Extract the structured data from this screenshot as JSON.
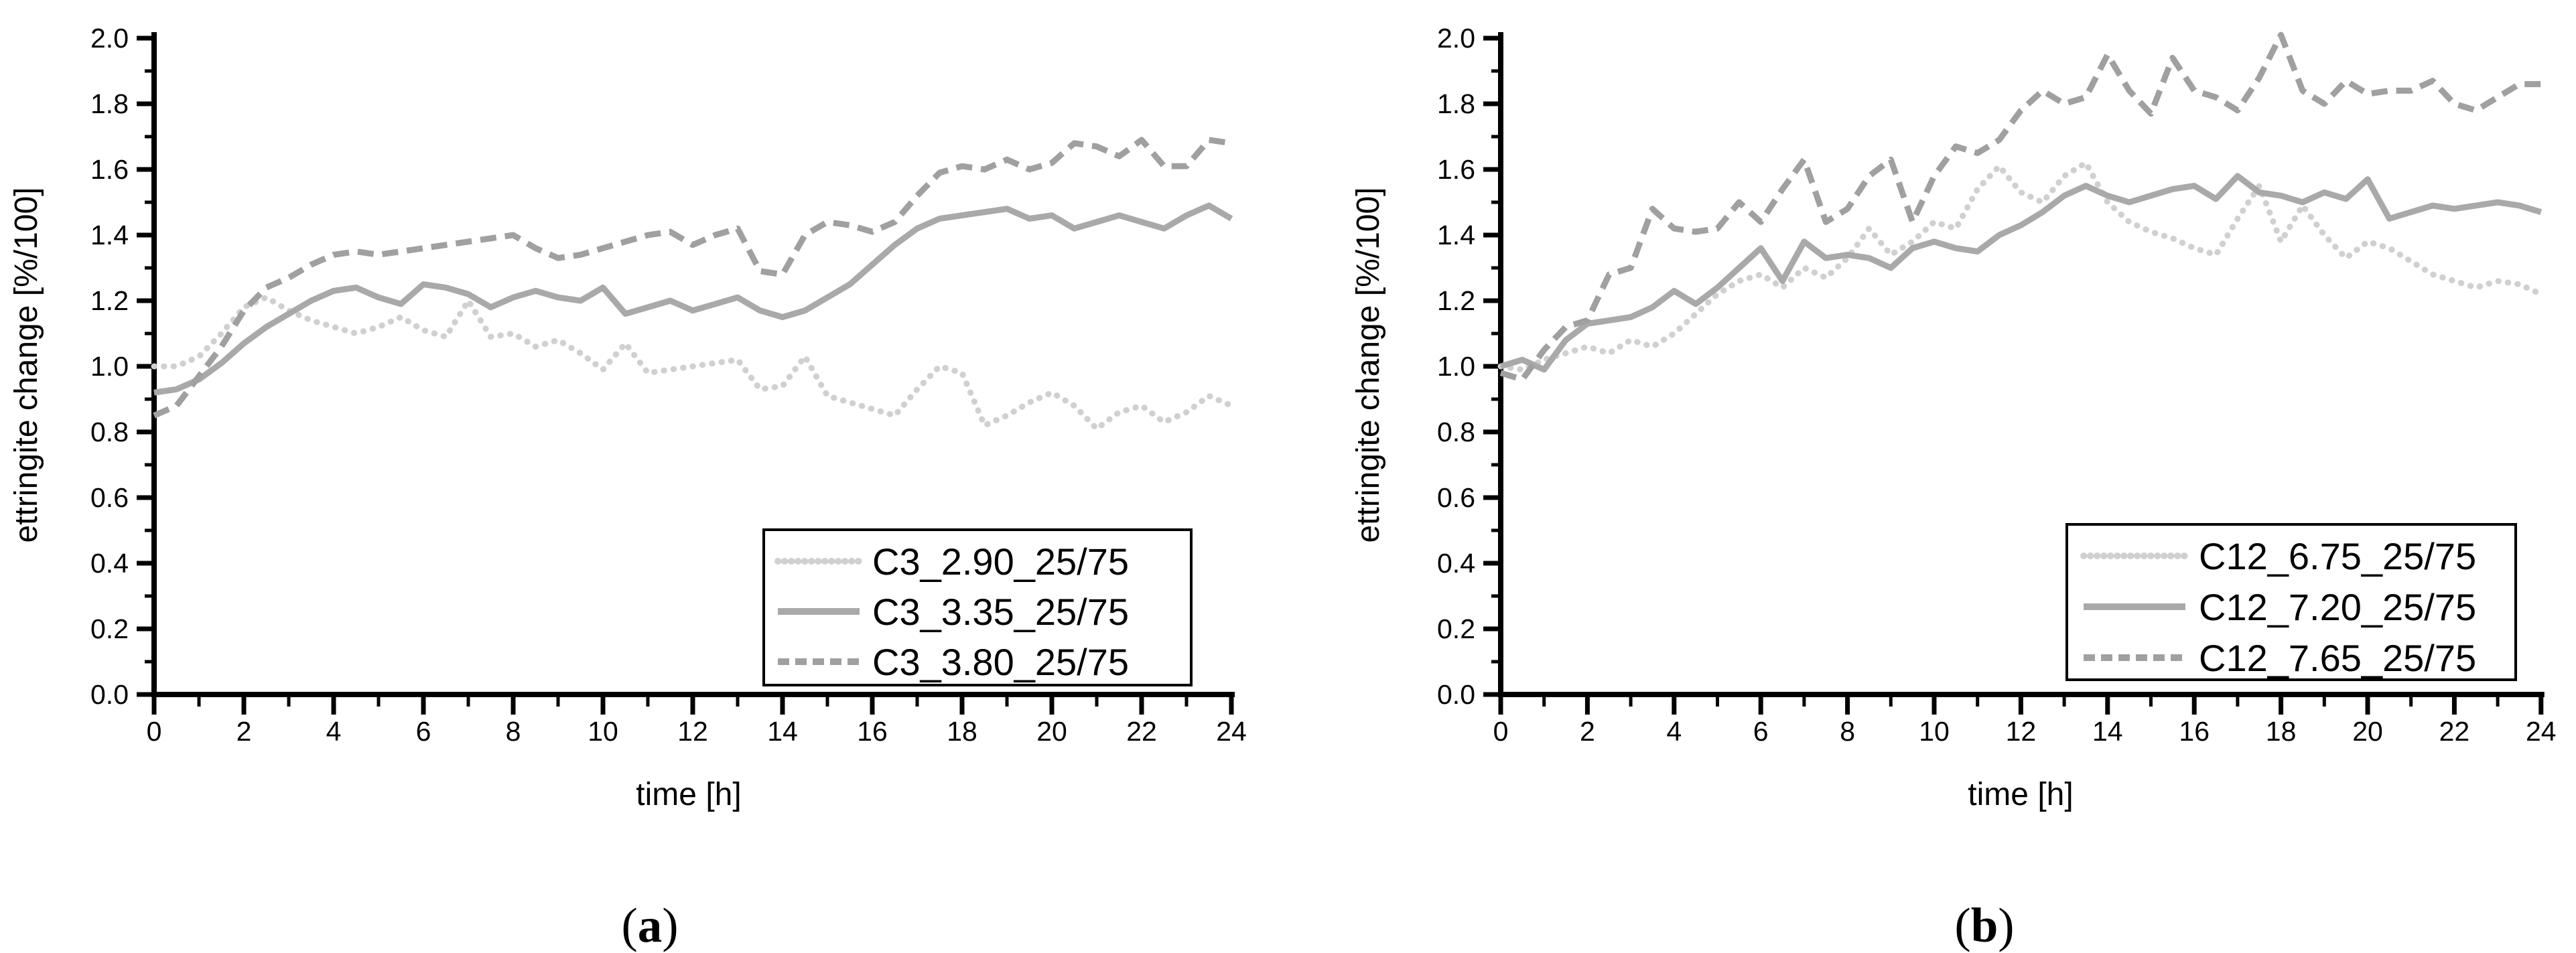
{
  "figure": {
    "background": "#ffffff"
  },
  "colors": {
    "axis": "#000000",
    "text": "#000000",
    "series_dotted": "#d0d0d0",
    "series_solid": "#a9a9a9",
    "series_dashed": "#a0a0a0"
  },
  "panels": [
    {
      "caption_open": "(",
      "caption_letter": "a",
      "caption_close": ")"
    },
    {
      "caption_open": "(",
      "caption_letter": "b",
      "caption_close": ")"
    }
  ],
  "chart_data": [
    {
      "type": "line",
      "title": "",
      "xlabel": "time [h]",
      "ylabel": "ettringite change [%/100]",
      "xlim": [
        0,
        24
      ],
      "ylim": [
        0.0,
        2.0
      ],
      "grid": false,
      "legend_position": "lower right",
      "x_ticks": [
        0,
        2,
        4,
        6,
        8,
        10,
        12,
        14,
        16,
        18,
        20,
        22,
        24
      ],
      "y_tick_labels": [
        "0.0",
        "0.2",
        "0.4",
        "0.6",
        "0.8",
        "1.0",
        "1.2",
        "1.4",
        "1.6",
        "1.8",
        "2.0"
      ],
      "t_start": 0,
      "t_step": 0.5,
      "series": [
        {
          "name": "C3_2.90_25/75",
          "style": "dotted",
          "values": [
            1.0,
            1.0,
            1.03,
            1.1,
            1.18,
            1.21,
            1.17,
            1.14,
            1.12,
            1.1,
            1.12,
            1.15,
            1.11,
            1.09,
            1.2,
            1.09,
            1.1,
            1.06,
            1.08,
            1.04,
            0.99,
            1.07,
            0.98,
            0.99,
            1.0,
            1.01,
            1.02,
            0.93,
            0.94,
            1.03,
            0.91,
            0.89,
            0.87,
            0.85,
            0.93,
            1.0,
            0.98,
            0.82,
            0.85,
            0.89,
            0.92,
            0.88,
            0.81,
            0.86,
            0.88,
            0.83,
            0.86,
            0.91,
            0.88
          ]
        },
        {
          "name": "C3_3.35_25/75",
          "style": "solid",
          "values": [
            0.92,
            0.93,
            0.96,
            1.01,
            1.07,
            1.12,
            1.16,
            1.2,
            1.23,
            1.24,
            1.21,
            1.19,
            1.25,
            1.24,
            1.22,
            1.18,
            1.21,
            1.23,
            1.21,
            1.2,
            1.24,
            1.16,
            1.18,
            1.2,
            1.17,
            1.19,
            1.21,
            1.17,
            1.15,
            1.17,
            1.21,
            1.25,
            1.31,
            1.37,
            1.42,
            1.45,
            1.46,
            1.47,
            1.48,
            1.45,
            1.46,
            1.42,
            1.44,
            1.46,
            1.44,
            1.42,
            1.46,
            1.49,
            1.45
          ]
        },
        {
          "name": "C3_3.80_25/75",
          "style": "dashed",
          "values": [
            0.85,
            0.88,
            0.97,
            1.06,
            1.17,
            1.24,
            1.27,
            1.31,
            1.34,
            1.35,
            1.34,
            1.35,
            1.36,
            1.37,
            1.38,
            1.39,
            1.4,
            1.36,
            1.33,
            1.34,
            1.36,
            1.38,
            1.4,
            1.41,
            1.37,
            1.4,
            1.42,
            1.29,
            1.28,
            1.4,
            1.44,
            1.43,
            1.41,
            1.44,
            1.52,
            1.59,
            1.61,
            1.6,
            1.63,
            1.6,
            1.62,
            1.68,
            1.67,
            1.64,
            1.69,
            1.61,
            1.61,
            1.69,
            1.68
          ]
        }
      ],
      "legend_entries": [
        "C3_2.90_25/75",
        "C3_3.35_25/75",
        "C3_3.80_25/75"
      ]
    },
    {
      "type": "line",
      "title": "",
      "xlabel": "time [h]",
      "ylabel": "ettringite change [%/100]",
      "xlim": [
        0,
        24
      ],
      "ylim": [
        0.0,
        2.0
      ],
      "grid": false,
      "legend_position": "lower right",
      "x_ticks": [
        0,
        2,
        4,
        6,
        8,
        10,
        12,
        14,
        16,
        18,
        20,
        22,
        24
      ],
      "y_tick_labels": [
        "0.0",
        "0.2",
        "0.4",
        "0.6",
        "0.8",
        "1.0",
        "1.2",
        "1.4",
        "1.6",
        "1.8",
        "2.0"
      ],
      "t_start": 0,
      "t_step": 0.5,
      "series": [
        {
          "name": "C12_6.75_25/75",
          "style": "dotted",
          "values": [
            1.0,
            0.99,
            1.02,
            1.04,
            1.06,
            1.04,
            1.08,
            1.06,
            1.1,
            1.16,
            1.22,
            1.26,
            1.28,
            1.24,
            1.3,
            1.27,
            1.33,
            1.42,
            1.34,
            1.38,
            1.44,
            1.42,
            1.54,
            1.61,
            1.53,
            1.5,
            1.58,
            1.62,
            1.5,
            1.44,
            1.41,
            1.39,
            1.36,
            1.34,
            1.45,
            1.55,
            1.38,
            1.49,
            1.4,
            1.33,
            1.38,
            1.36,
            1.32,
            1.28,
            1.26,
            1.24,
            1.26,
            1.25,
            1.22
          ]
        },
        {
          "name": "C12_7.20_25/75",
          "style": "solid",
          "values": [
            1.0,
            1.02,
            0.99,
            1.08,
            1.13,
            1.14,
            1.15,
            1.18,
            1.23,
            1.19,
            1.24,
            1.3,
            1.36,
            1.26,
            1.38,
            1.33,
            1.34,
            1.33,
            1.3,
            1.36,
            1.38,
            1.36,
            1.35,
            1.4,
            1.43,
            1.47,
            1.52,
            1.55,
            1.52,
            1.5,
            1.52,
            1.54,
            1.55,
            1.51,
            1.58,
            1.53,
            1.52,
            1.5,
            1.53,
            1.51,
            1.57,
            1.45,
            1.47,
            1.49,
            1.48,
            1.49,
            1.5,
            1.49,
            1.47
          ]
        },
        {
          "name": "C12_7.65_25/75",
          "style": "dashed",
          "values": [
            0.98,
            0.96,
            1.05,
            1.12,
            1.14,
            1.28,
            1.3,
            1.48,
            1.42,
            1.41,
            1.42,
            1.5,
            1.44,
            1.54,
            1.63,
            1.44,
            1.48,
            1.58,
            1.63,
            1.44,
            1.58,
            1.67,
            1.65,
            1.69,
            1.78,
            1.84,
            1.8,
            1.82,
            1.95,
            1.84,
            1.77,
            1.94,
            1.84,
            1.82,
            1.78,
            1.88,
            2.01,
            1.84,
            1.8,
            1.87,
            1.83,
            1.84,
            1.84,
            1.87,
            1.8,
            1.78,
            1.82,
            1.86,
            1.86
          ]
        }
      ],
      "legend_entries": [
        "C12_6.75_25/75",
        "C12_7.20_25/75",
        "C12_7.65_25/75"
      ]
    }
  ]
}
